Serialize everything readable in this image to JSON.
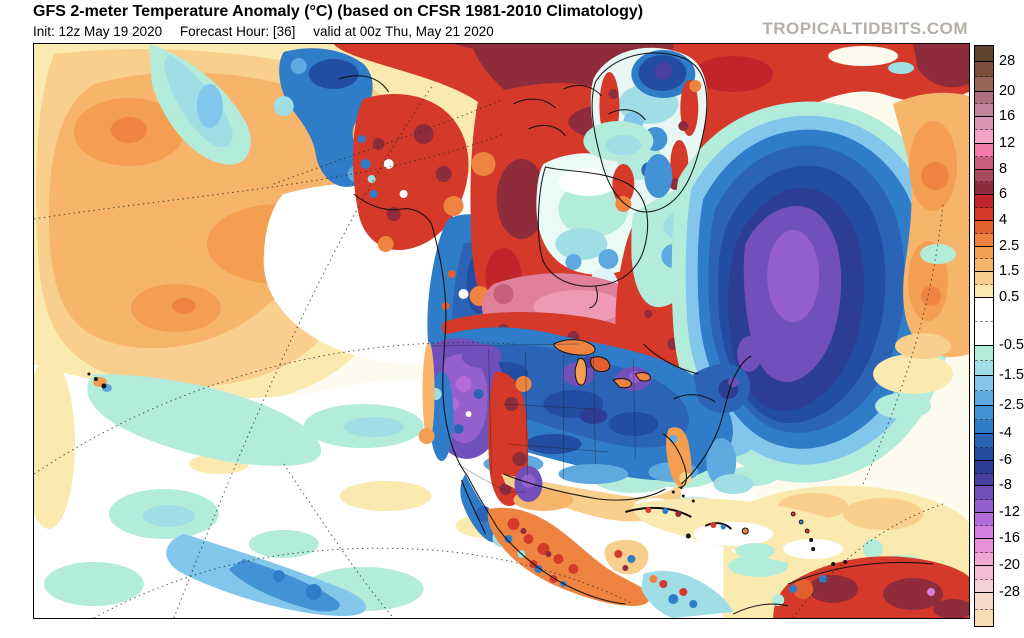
{
  "header": {
    "title": "GFS 2-meter Temperature Anomaly (°C) (based on CFSR 1981-2010 Climatology)",
    "init": "Init: 12z May 19 2020",
    "forecast_hour": "Forecast Hour: [36]",
    "valid": "valid at 00z Thu, May 21 2020",
    "watermark": "TROPICALTIDBITS.COM"
  },
  "colorbar": {
    "unit": "°C",
    "tick_labels": [
      "28",
      "20",
      "16",
      "12",
      "8",
      "6",
      "4",
      "2.5",
      "1.5",
      "0.5",
      "-0.5",
      "-1.5",
      "-2.5",
      "-4",
      "-6",
      "-8",
      "-12",
      "-16",
      "-20",
      "-28"
    ],
    "segments": [
      {
        "h": 16,
        "c": "#5f452b",
        "v": "above 28"
      },
      {
        "h": 15,
        "c": "#7b4f3b",
        "tick": "28",
        "v": "24..28"
      },
      {
        "h": 15,
        "c": "#99655a",
        "v": "20..24"
      },
      {
        "h": 12,
        "c": "#ae7081",
        "tick": "20",
        "v": "18..20"
      },
      {
        "h": 13,
        "c": "#c2849c",
        "v": "16..18"
      },
      {
        "h": 13,
        "c": "#d794b4",
        "tick": "16",
        "v": "14..16"
      },
      {
        "h": 14,
        "c": "#f2a3ca",
        "v": "12..14"
      },
      {
        "h": 13,
        "c": "#f379ab",
        "tick": "12",
        "v": "10..12"
      },
      {
        "h": 13,
        "c": "#c75f7c",
        "v": "8..10"
      },
      {
        "h": 12,
        "c": "#a94a5c",
        "tick": "8",
        "v": "7..8"
      },
      {
        "h": 13,
        "c": "#8e2c3c",
        "v": "6..7"
      },
      {
        "h": 13,
        "c": "#c2242b",
        "tick": "6",
        "v": "5..6"
      },
      {
        "h": 13,
        "c": "#d5392a",
        "v": "4..5"
      },
      {
        "h": 13,
        "c": "#e35f2e",
        "tick": "4",
        "v": "3..4"
      },
      {
        "h": 13,
        "c": "#ef8440",
        "v": "2.5..3"
      },
      {
        "h": 12,
        "c": "#f49e52",
        "tick": "2.5",
        "v": "2..2.5"
      },
      {
        "h": 13,
        "c": "#f7b56c",
        "v": "1.5..2"
      },
      {
        "h": 13,
        "c": "#f9cf8e",
        "tick": "1.5",
        "v": "1..1.5"
      },
      {
        "h": 13,
        "c": "#fbeab0",
        "v": "0.5..1"
      },
      {
        "h": 24,
        "c": "#ffffff",
        "tick": "0.5",
        "v": "0..0.5"
      },
      {
        "h": 24,
        "c": "#ffffff",
        "v": "-0.5..0"
      },
      {
        "h": 15,
        "c": "#b4ecdc",
        "tick": "-0.5",
        "v": "-1..-0.5"
      },
      {
        "h": 15,
        "c": "#9edee4",
        "v": "-1.5..-1"
      },
      {
        "h": 15,
        "c": "#82c7eb",
        "tick": "-1.5",
        "v": "-2..-1.5"
      },
      {
        "h": 15,
        "c": "#5fa9e1",
        "v": "-2.5..-2"
      },
      {
        "h": 14,
        "c": "#4492d6",
        "tick": "-2.5",
        "v": "-3..-2.5"
      },
      {
        "h": 14,
        "c": "#2f7cc8",
        "v": "-4..-3"
      },
      {
        "h": 14,
        "c": "#2b64b6",
        "tick": "-4",
        "v": "-5..-4"
      },
      {
        "h": 13,
        "c": "#224da0",
        "v": "-6..-5"
      },
      {
        "h": 13,
        "c": "#2b3e94",
        "tick": "-6",
        "v": "-7..-6"
      },
      {
        "h": 12,
        "c": "#48419f",
        "v": "-8..-7"
      },
      {
        "h": 14,
        "c": "#7150bb",
        "tick": "-8",
        "v": "-10..-8"
      },
      {
        "h": 13,
        "c": "#9560ce",
        "v": "-12..-10"
      },
      {
        "h": 13,
        "c": "#b46cdb",
        "tick": "-12",
        "v": "-14..-12"
      },
      {
        "h": 13,
        "c": "#d77de2",
        "v": "-16..-14"
      },
      {
        "h": 14,
        "c": "#ea90d8",
        "tick": "-16",
        "v": "-18..-16"
      },
      {
        "h": 13,
        "c": "#f0a8d2",
        "v": "-20..-18"
      },
      {
        "h": 14,
        "c": "#f4bdd6",
        "tick": "-20",
        "v": "-24..-20"
      },
      {
        "h": 13,
        "c": "#f6d0d9",
        "v": "-28..-24"
      },
      {
        "h": 17,
        "c": "#f8d9c9",
        "tick": "-28",
        "v": "-32..-28"
      },
      {
        "h": 16,
        "c": "#fadcb4",
        "v": "below -32"
      }
    ]
  },
  "map": {
    "region": "North America, North Pacific and North Atlantic",
    "projection_grid": "dashed graticule",
    "accent_colors": {
      "warm_core": "#8e2c3c",
      "cold_core": "#7150bb",
      "very_warm_band": "#e0809b"
    }
  }
}
